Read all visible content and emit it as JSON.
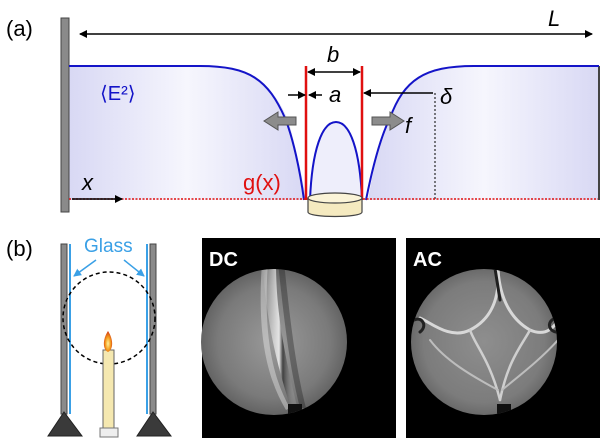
{
  "panel_a": {
    "label": "(a)",
    "length_label": "L",
    "width_label": "b",
    "gap_label": "a",
    "distance_label": "δ",
    "field_label": "⟨E²⟩",
    "force_label": "f",
    "coordinate_label": "x",
    "function_label": "g(x)",
    "colors": {
      "field": "#1414c8",
      "fill": "#dcdcf5",
      "electrode": "#e01010",
      "force_arrow": "#8c8c8c"
    }
  },
  "panel_b": {
    "label": "(b)",
    "glass_label": "Glass",
    "dc_label": "DC",
    "ac_label": "AC",
    "colors": {
      "glass": "#3aa0e6",
      "flame": "#f0a020",
      "candle": "#f5e8b0"
    }
  }
}
